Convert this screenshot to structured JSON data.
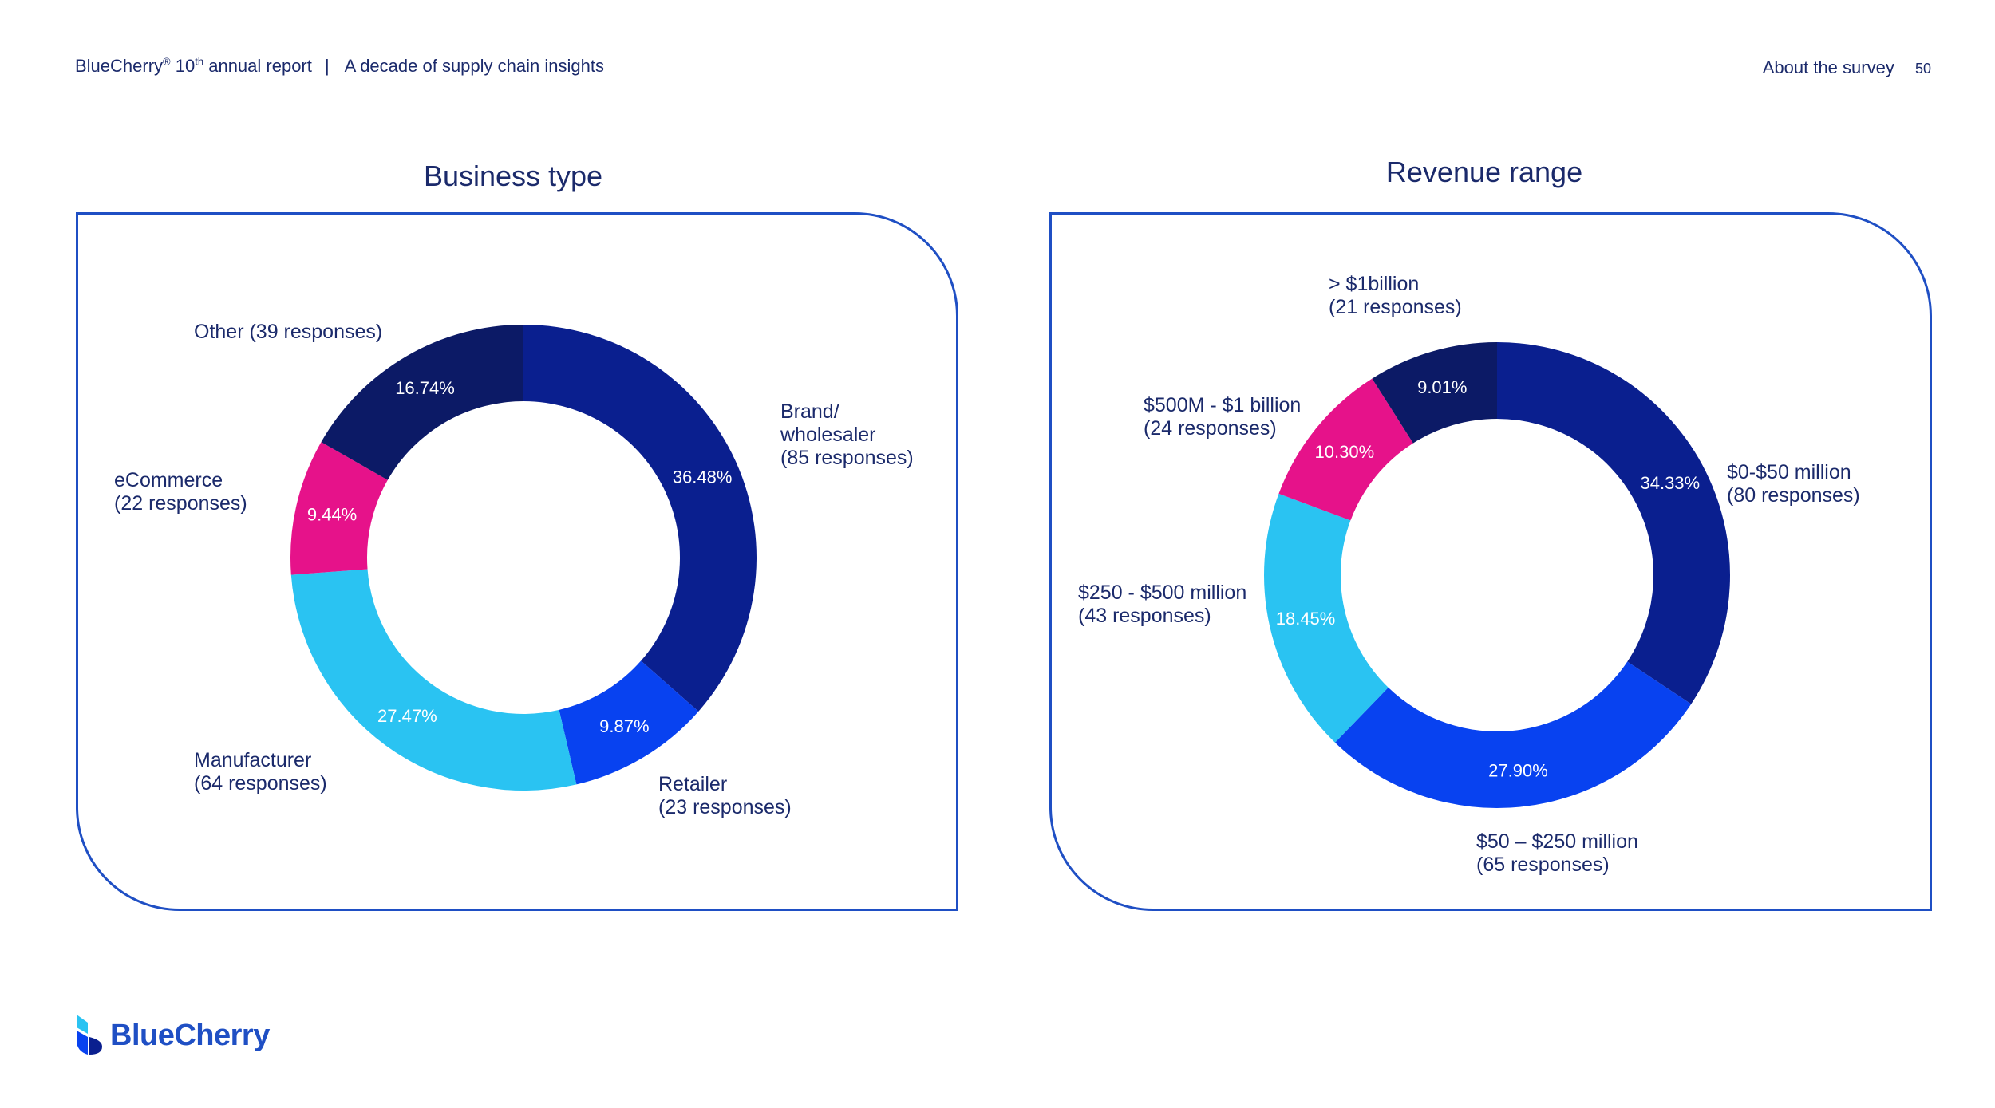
{
  "header": {
    "brand": "BlueCherry",
    "reg": "®",
    "edition_num": "10",
    "edition_sup": "th",
    "edition_rest": "annual report",
    "separator": "|",
    "subtitle": "A decade of supply chain insights",
    "section": "About the survey",
    "page_number": "50"
  },
  "logo": {
    "text": "BlueCherry"
  },
  "colors": {
    "dark_navy": "#0c1a66",
    "navy": "#0a1f8f",
    "royal_blue": "#0842f0",
    "sky_blue": "#2ac3f2",
    "magenta": "#e6128a",
    "text": "#1b2a6b",
    "card_border": "#1f4fc4"
  },
  "chart_data": [
    {
      "type": "donut",
      "title": "Business type",
      "series": [
        {
          "name": "Brand/ wholesaler",
          "label_lines": [
            "Brand/",
            "wholesaler",
            "(85 responses)"
          ],
          "responses": 85,
          "value": 36.48,
          "value_label": "36.48%",
          "color": "#0a1f8f"
        },
        {
          "name": "Retailer",
          "label_lines": [
            "Retailer",
            "(23 responses)"
          ],
          "responses": 23,
          "value": 9.87,
          "value_label": "9.87%",
          "color": "#0842f0"
        },
        {
          "name": "Manufacturer",
          "label_lines": [
            "Manufacturer",
            "(64 responses)"
          ],
          "responses": 64,
          "value": 27.47,
          "value_label": "27.47%",
          "color": "#2ac3f2"
        },
        {
          "name": "eCommerce",
          "label_lines": [
            "eCommerce",
            "(22 responses)"
          ],
          "responses": 22,
          "value": 9.44,
          "value_label": "9.44%",
          "color": "#e6128a"
        },
        {
          "name": "Other",
          "label_lines": [
            "Other (39 responses)"
          ],
          "responses": 39,
          "value": 16.74,
          "value_label": "16.74%",
          "color": "#0c1a66"
        }
      ]
    },
    {
      "type": "donut",
      "title": "Revenue range",
      "series": [
        {
          "name": "$0-$50 million",
          "label_lines": [
            "$0-$50 million",
            "(80 responses)"
          ],
          "responses": 80,
          "value": 34.33,
          "value_label": "34.33%",
          "color": "#0a1f8f"
        },
        {
          "name": "$50 – $250 million",
          "label_lines": [
            "$50 – $250 million",
            "(65 responses)"
          ],
          "responses": 65,
          "value": 27.9,
          "value_label": "27.90%",
          "color": "#0842f0"
        },
        {
          "name": "$250 - $500 million",
          "label_lines": [
            "$250 - $500 million",
            "(43 responses)"
          ],
          "responses": 43,
          "value": 18.45,
          "value_label": "18.45%",
          "color": "#2ac3f2"
        },
        {
          "name": "$500M - $1 billion",
          "label_lines": [
            "$500M - $1 billion",
            "(24 responses)"
          ],
          "responses": 24,
          "value": 10.3,
          "value_label": "10.30%",
          "color": "#e6128a"
        },
        {
          "name": "> $1billion",
          "label_lines": [
            "> $1billion",
            "(21 responses)"
          ],
          "responses": 21,
          "value": 9.01,
          "value_label": "9.01%",
          "color": "#0c1a66"
        }
      ]
    }
  ]
}
